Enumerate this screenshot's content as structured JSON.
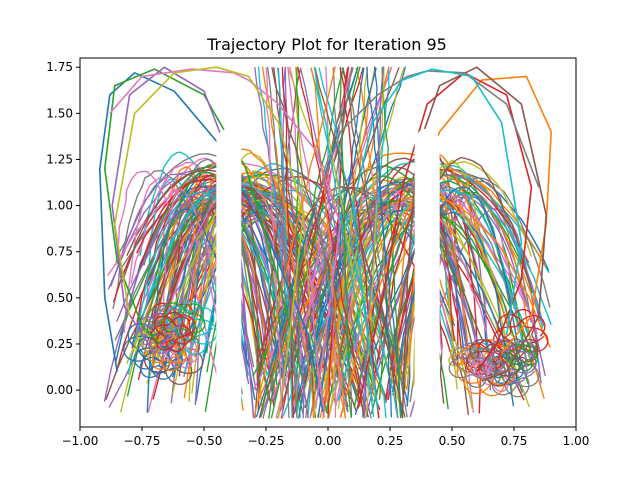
{
  "chart_data": {
    "type": "line",
    "title": "Trajectory Plot for Iteration 95",
    "xlabel": "",
    "ylabel": "",
    "xlim": [
      -1.0,
      1.0
    ],
    "ylim": [
      -0.2,
      1.8
    ],
    "x_ticks": [
      "−1.00",
      "−0.75",
      "−0.50",
      "−0.25",
      "0.00",
      "0.25",
      "0.50",
      "0.75",
      "1.00"
    ],
    "x_tick_values": [
      -1.0,
      -0.75,
      -0.5,
      -0.25,
      0.0,
      0.25,
      0.5,
      0.75,
      1.0
    ],
    "y_ticks": [
      "0.00",
      "0.25",
      "0.50",
      "0.75",
      "1.00",
      "1.25",
      "1.50",
      "1.75"
    ],
    "y_tick_values": [
      0.0,
      0.25,
      0.5,
      0.75,
      1.0,
      1.25,
      1.5,
      1.75
    ],
    "grid": false,
    "legend": "none",
    "palette": [
      "#1f77b4",
      "#ff7f0e",
      "#2ca02c",
      "#d62728",
      "#9467bd",
      "#8c564b",
      "#e377c2",
      "#7f7f7f",
      "#bcbd22",
      "#17becf"
    ],
    "series": [
      {
        "color": "#1f77b4",
        "x": [
          -0.02,
          -0.08,
          -0.25,
          -0.45,
          -0.62,
          -0.78,
          -0.88,
          -0.92,
          -0.9,
          -0.85
        ],
        "y": [
          -0.12,
          0.3,
          0.85,
          1.35,
          1.62,
          1.72,
          1.6,
          1.2,
          0.5,
          0.1
        ]
      },
      {
        "color": "#ff7f0e",
        "x": [
          0.05,
          0.15,
          0.3,
          0.45,
          0.62,
          0.8,
          0.9,
          0.88,
          0.82,
          0.7
        ],
        "y": [
          -0.15,
          0.35,
          0.9,
          1.4,
          1.68,
          1.7,
          1.4,
          0.9,
          0.4,
          0.2
        ]
      },
      {
        "color": "#2ca02c",
        "x": [
          -0.1,
          -0.2,
          -0.33,
          -0.5,
          -0.7,
          -0.86,
          -0.9,
          -0.85,
          -0.75,
          -0.68
        ],
        "y": [
          0.05,
          0.6,
          1.2,
          1.6,
          1.74,
          1.65,
          1.2,
          0.7,
          0.35,
          0.25
        ]
      },
      {
        "color": "#d62728",
        "x": [
          0.12,
          0.22,
          0.3,
          0.4,
          0.55,
          0.72,
          0.82,
          0.78,
          0.68,
          0.6
        ],
        "y": [
          -0.1,
          0.5,
          1.1,
          1.55,
          1.72,
          1.6,
          1.1,
          0.6,
          0.25,
          0.1
        ]
      },
      {
        "color": "#9467bd",
        "x": [
          -0.3,
          -0.34,
          -0.38,
          -0.5,
          -0.66,
          -0.8,
          -0.87,
          -0.82,
          -0.7,
          -0.6
        ],
        "y": [
          -0.15,
          0.5,
          1.2,
          1.62,
          1.75,
          1.6,
          1.0,
          0.45,
          0.2,
          0.35
        ]
      },
      {
        "color": "#8c564b",
        "x": [
          0.3,
          0.32,
          0.36,
          0.45,
          0.6,
          0.78,
          0.88,
          0.85,
          0.72,
          0.62
        ],
        "y": [
          -0.15,
          0.6,
          1.3,
          1.65,
          1.75,
          1.55,
          0.95,
          0.4,
          0.1,
          0.05
        ]
      },
      {
        "color": "#e377c2",
        "x": [
          -0.05,
          0.0,
          0.05,
          -0.05,
          -0.2,
          -0.32,
          -0.38,
          -0.55,
          -0.75,
          -0.88
        ],
        "y": [
          -0.1,
          0.4,
          0.9,
          1.3,
          1.55,
          1.68,
          1.72,
          1.74,
          1.7,
          1.5
        ]
      },
      {
        "color": "#7f7f7f",
        "x": [
          0.08,
          0.02,
          -0.05,
          0.05,
          0.2,
          0.32,
          0.4,
          0.55,
          0.72,
          0.85
        ],
        "y": [
          -0.12,
          0.45,
          1.0,
          1.4,
          1.6,
          1.7,
          1.73,
          1.72,
          1.55,
          1.1
        ]
      },
      {
        "color": "#bcbd22",
        "x": [
          -0.2,
          -0.15,
          -0.1,
          -0.2,
          -0.32,
          -0.45,
          -0.62,
          -0.78,
          -0.86,
          -0.8
        ],
        "y": [
          -0.15,
          0.35,
          0.95,
          1.45,
          1.7,
          1.75,
          1.72,
          1.5,
          0.9,
          0.4
        ]
      },
      {
        "color": "#17becf",
        "x": [
          0.2,
          0.15,
          0.1,
          0.18,
          0.3,
          0.42,
          0.58,
          0.7,
          0.78,
          0.72
        ],
        "y": [
          -0.1,
          0.4,
          1.0,
          1.45,
          1.68,
          1.74,
          1.7,
          1.45,
          0.8,
          0.3
        ]
      }
    ]
  }
}
